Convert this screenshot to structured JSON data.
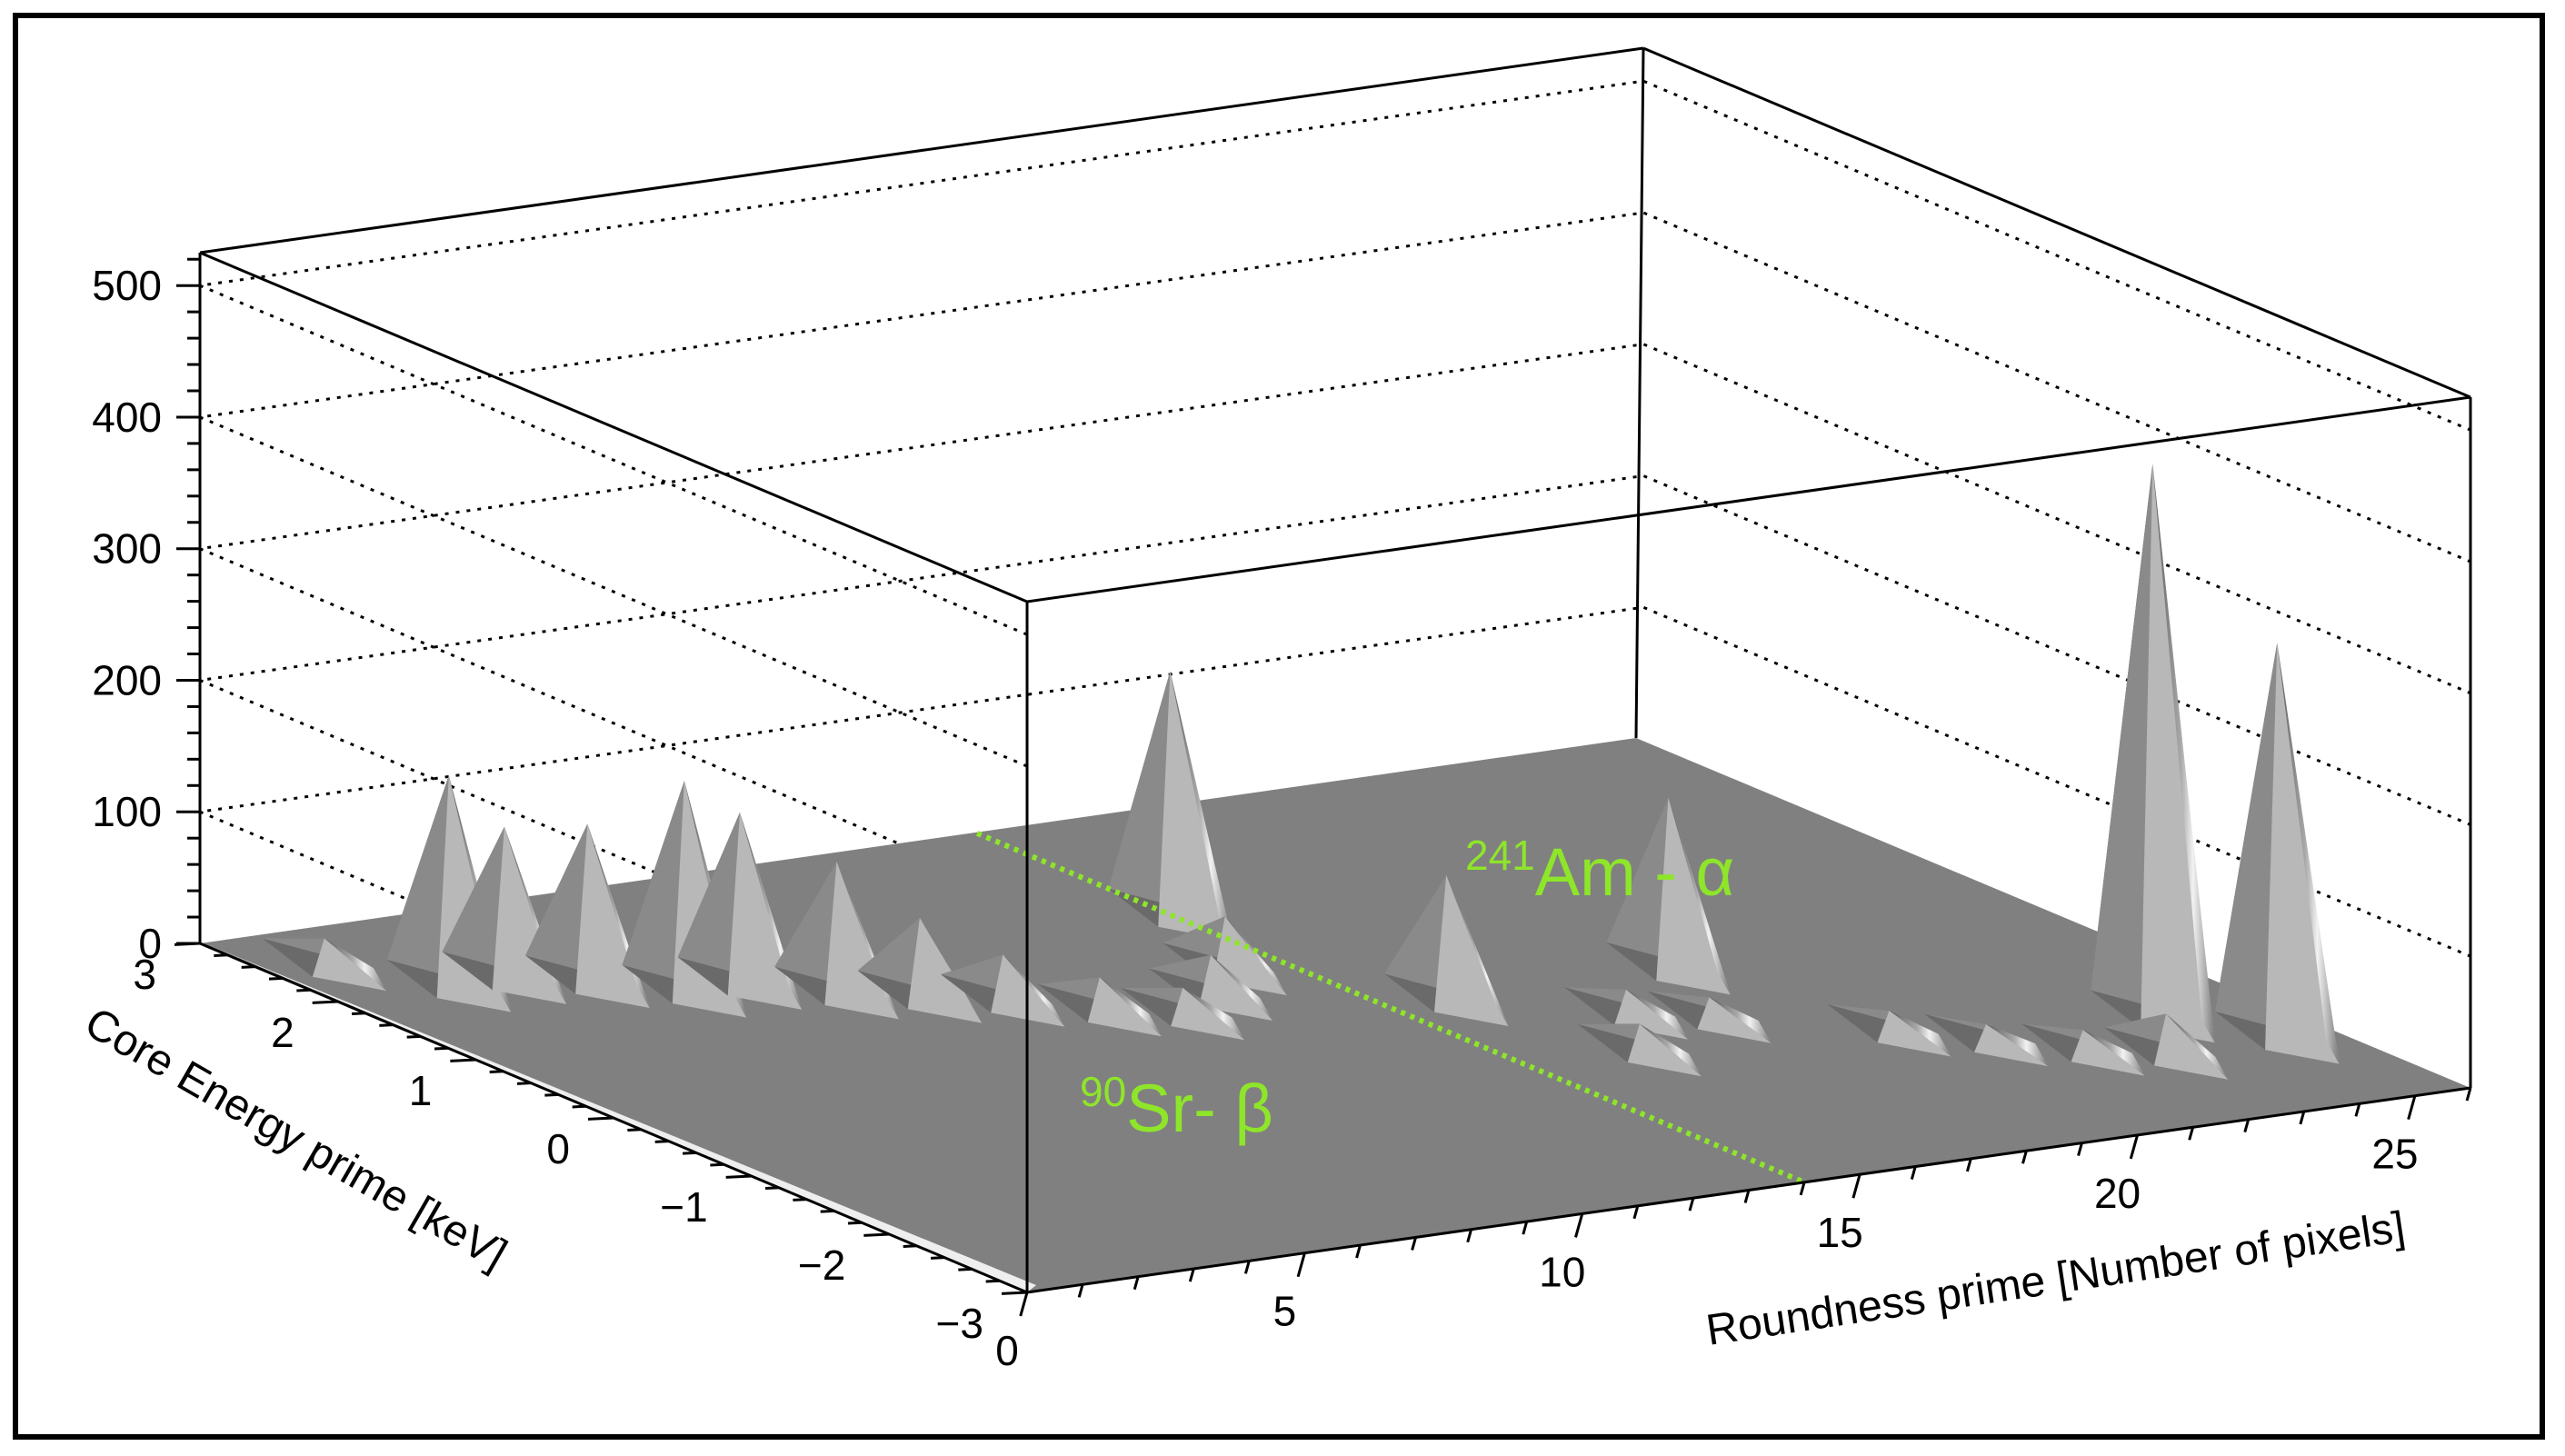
{
  "chart_data": {
    "type": "surface",
    "z_axis": {
      "ticks": [
        "0",
        "100",
        "200",
        "300",
        "400",
        "500"
      ],
      "range": [
        0,
        525
      ],
      "gridlines": "dotted"
    },
    "x_axis": {
      "label": "Roundness prime [Number of pixels]",
      "ticks": [
        "0",
        "5",
        "10",
        "15",
        "20",
        "25"
      ],
      "range": [
        0,
        26
      ]
    },
    "y_axis": {
      "label": "Core Energy prime [keV]",
      "ticks": [
        "3",
        "2",
        "1",
        "0",
        "−1",
        "−2",
        "−3"
      ],
      "range": [
        -3,
        3
      ]
    },
    "peaks": [
      {
        "roundness": 1,
        "energy": 2.5,
        "count": 20
      },
      {
        "roundness": 2,
        "energy": 2.0,
        "count": 160
      },
      {
        "roundness": 3,
        "energy": 2.0,
        "count": 115
      },
      {
        "roundness": 4,
        "energy": 1.8,
        "count": 120
      },
      {
        "roundness": 5,
        "energy": 1.5,
        "count": 160
      },
      {
        "roundness": 6,
        "energy": 1.5,
        "count": 130
      },
      {
        "roundness": 7,
        "energy": 1.2,
        "count": 100
      },
      {
        "roundness": 8,
        "energy": 1.0,
        "count": 60
      },
      {
        "roundness": 9,
        "energy": 0.8,
        "count": 35
      },
      {
        "roundness": 10,
        "energy": 0.5,
        "count": 25
      },
      {
        "roundness": 11,
        "energy": 0.3,
        "count": 20
      },
      {
        "roundness": 12,
        "energy": 0.5,
        "count": 30
      },
      {
        "roundness": 13,
        "energy": 0.8,
        "count": 40
      },
      {
        "roundness": 14,
        "energy": 1.6,
        "count": 185
      },
      {
        "roundness": 15,
        "energy": 0.0,
        "count": 95
      },
      {
        "roundness": 16,
        "energy": -1.0,
        "count": 20
      },
      {
        "roundness": 17,
        "energy": -0.5,
        "count": 18
      },
      {
        "roundness": 18,
        "energy": -0.7,
        "count": 15
      },
      {
        "roundness": 19,
        "energy": 0.0,
        "count": 130
      },
      {
        "roundness": 20,
        "energy": -1.2,
        "count": 15
      },
      {
        "roundness": 21,
        "energy": -1.5,
        "count": 12
      },
      {
        "roundness": 22,
        "energy": -1.8,
        "count": 15
      },
      {
        "roundness": 23,
        "energy": -2.0,
        "count": 30
      },
      {
        "roundness": 24,
        "energy": -1.5,
        "count": 420
      },
      {
        "roundness": 25,
        "energy": -2.0,
        "count": 300
      }
    ],
    "separator_line": {
      "start": {
        "roundness": 14,
        "energy": 3
      },
      "end": {
        "roundness": 14,
        "energy": -3
      },
      "color": "#8ee52a"
    },
    "annotations": [
      {
        "id": "sr",
        "sup": "90",
        "text": "Sr- β",
        "color": "#8ee52a"
      },
      {
        "id": "am",
        "sup": "241",
        "text": "Am - α",
        "color": "#8ee52a"
      }
    ],
    "colors": {
      "floor": "#808080",
      "surface_light": "#f2f2f2",
      "surface_dark": "#5c5c5c",
      "annotation": "#8ee52a",
      "frame": "#000000"
    }
  }
}
